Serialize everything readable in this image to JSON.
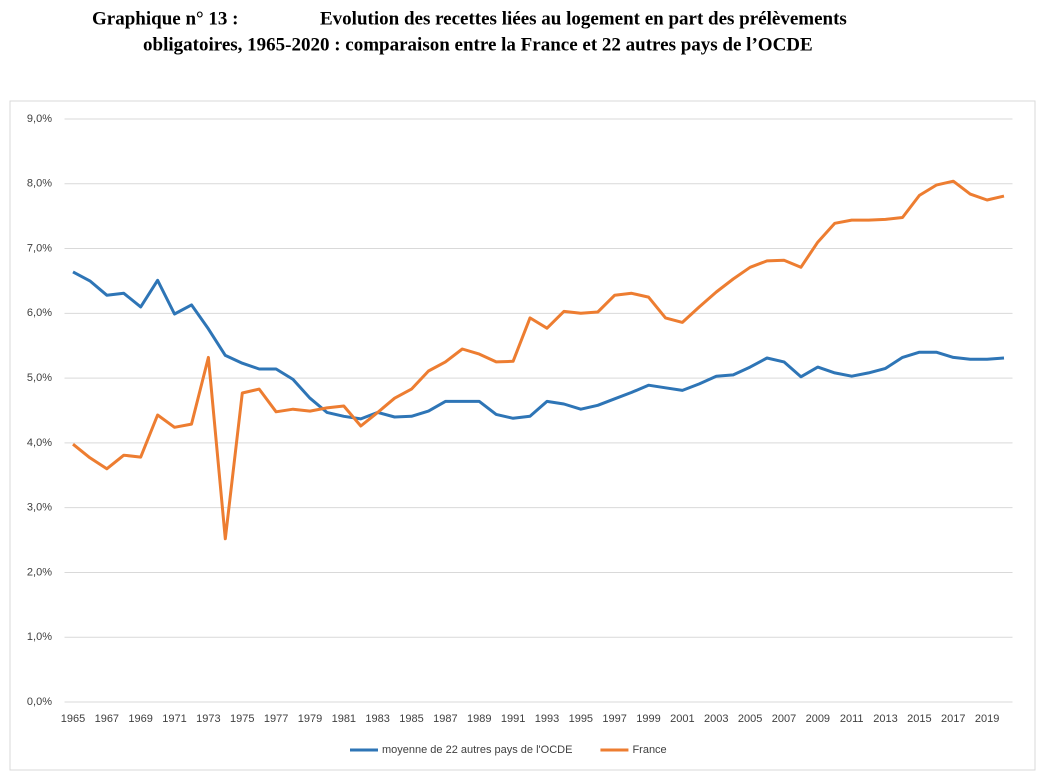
{
  "chart_data": {
    "type": "line",
    "title": [
      "Graphique n° 13 :",
      "Evolution des recettes liées au logement en part des prélèvements",
      "obligatoires, 1965-2020 : comparaison entre la France et 22 autres pays de l’OCDE"
    ],
    "x": [
      1965,
      1966,
      1967,
      1968,
      1969,
      1970,
      1971,
      1972,
      1973,
      1974,
      1975,
      1976,
      1977,
      1978,
      1979,
      1980,
      1981,
      1982,
      1983,
      1984,
      1985,
      1986,
      1987,
      1988,
      1989,
      1990,
      1991,
      1992,
      1993,
      1994,
      1995,
      1996,
      1997,
      1998,
      1999,
      2000,
      2001,
      2002,
      2003,
      2004,
      2005,
      2006,
      2007,
      2008,
      2009,
      2010,
      2011,
      2012,
      2013,
      2014,
      2015,
      2016,
      2017,
      2018,
      2019,
      2020
    ],
    "xlim": [
      1964.5,
      2020.5
    ],
    "xticks": [
      1965,
      1967,
      1969,
      1971,
      1973,
      1975,
      1977,
      1979,
      1981,
      1983,
      1985,
      1987,
      1989,
      1991,
      1993,
      1995,
      1997,
      1999,
      2001,
      2003,
      2005,
      2007,
      2009,
      2011,
      2013,
      2015,
      2017,
      2019
    ],
    "ylim": [
      0,
      9
    ],
    "yticks": [
      {
        "value": 0,
        "label": "0,0%"
      },
      {
        "value": 1,
        "label": "1,0%"
      },
      {
        "value": 2,
        "label": "2,0%"
      },
      {
        "value": 3,
        "label": "3,0%"
      },
      {
        "value": 4,
        "label": "4,0%"
      },
      {
        "value": 5,
        "label": "5,0%"
      },
      {
        "value": 6,
        "label": "6,0%"
      },
      {
        "value": 7,
        "label": "7,0%"
      },
      {
        "value": 8,
        "label": "8,0%"
      },
      {
        "value": 9,
        "label": "9,0%"
      }
    ],
    "grid": true,
    "legend": "bottom",
    "series": [
      {
        "name": "moyenne de 22 autres pays de l'OCDE",
        "color": "#2e75b6",
        "values": [
          6.64,
          6.5,
          6.28,
          6.31,
          6.1,
          6.51,
          5.99,
          6.13,
          5.76,
          5.35,
          5.23,
          5.14,
          5.14,
          4.98,
          4.69,
          4.47,
          4.41,
          4.37,
          4.47,
          4.4,
          4.41,
          4.49,
          4.64,
          4.64,
          4.64,
          4.44,
          4.38,
          4.41,
          4.64,
          4.6,
          4.52,
          4.58,
          4.68,
          4.78,
          4.89,
          4.85,
          4.81,
          4.91,
          5.03,
          5.05,
          5.17,
          5.31,
          5.25,
          5.02,
          5.17,
          5.08,
          5.03,
          5.08,
          5.15,
          5.32,
          5.4,
          5.4,
          5.32,
          5.29,
          5.29,
          5.31
        ]
      },
      {
        "name": "France",
        "color": "#ed7d31",
        "values": [
          3.98,
          3.77,
          3.6,
          3.81,
          3.78,
          4.43,
          4.24,
          4.29,
          5.32,
          2.52,
          4.77,
          4.83,
          4.48,
          4.52,
          4.49,
          4.54,
          4.57,
          4.26,
          4.47,
          4.69,
          4.83,
          5.11,
          5.25,
          5.45,
          5.37,
          5.25,
          5.26,
          5.93,
          5.77,
          6.03,
          6.0,
          6.02,
          6.28,
          6.31,
          6.25,
          5.93,
          5.86,
          6.1,
          6.33,
          6.53,
          6.71,
          6.81,
          6.82,
          6.71,
          7.1,
          7.39,
          7.44,
          7.44,
          7.45,
          7.48,
          7.82,
          7.98,
          8.04,
          7.84,
          7.75,
          7.81
        ]
      }
    ]
  }
}
